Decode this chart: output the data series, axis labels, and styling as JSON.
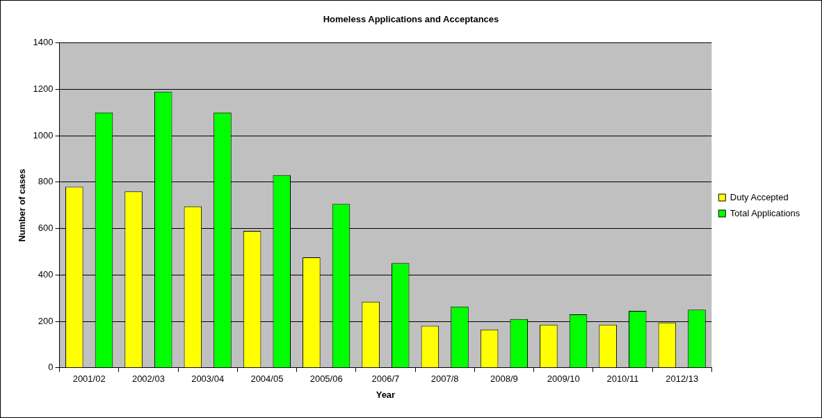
{
  "chart_data": {
    "type": "bar",
    "title": "Homeless Applications and Acceptances",
    "xlabel": "Year",
    "ylabel": "Number of cases",
    "categories": [
      "2001/02",
      "2002/03",
      "2003/04",
      "2004/05",
      "2005/06",
      "2006/7",
      "2007/8",
      "2008/9",
      "2009/10",
      "2010/11",
      "2012/13"
    ],
    "series": [
      {
        "name": "Duty Accepted",
        "color": "#ffff00",
        "values": [
          780,
          760,
          695,
          590,
          476,
          285,
          181,
          165,
          186,
          186,
          195
        ]
      },
      {
        "name": "Total Applications",
        "color": "#00ff00",
        "values": [
          1100,
          1190,
          1100,
          830,
          706,
          451,
          264,
          210,
          230,
          245,
          250
        ]
      }
    ],
    "ylim": [
      0,
      1400
    ],
    "yticks": [
      0,
      200,
      400,
      600,
      800,
      1000,
      1200,
      1400
    ],
    "grid": "y",
    "legend": "right"
  }
}
